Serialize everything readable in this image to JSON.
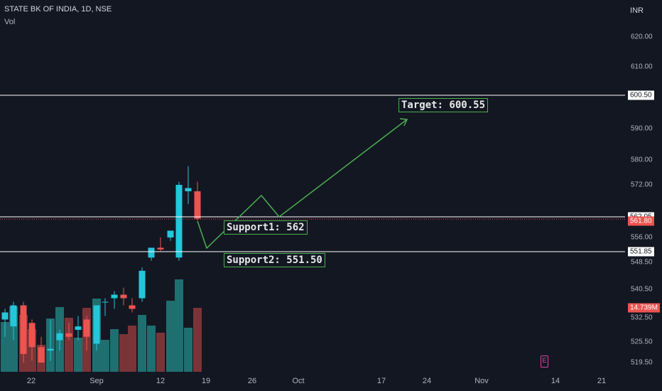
{
  "header": {
    "title": "STATE BK OF INDIA, 1D, NSE",
    "volume_label": "Vol",
    "currency": "INR"
  },
  "price_axis": {
    "ticks": [
      "620.00",
      "610.00",
      "590.00",
      "580.00",
      "572.00",
      "556.00",
      "548.50",
      "540.50",
      "532.50",
      "525.50",
      "519.50"
    ],
    "tick_values": [
      620,
      610,
      590,
      580,
      572,
      556,
      548.5,
      540.5,
      532.5,
      525.5,
      519.5
    ],
    "line_labels": [
      {
        "text": "600.50",
        "value": 600.5
      },
      {
        "text": "562.05",
        "value": 562.05
      },
      {
        "text": "551.85",
        "value": 551.85
      }
    ],
    "current_price": {
      "text": "561.80",
      "value": 561.8
    },
    "volume_badge": "14.739M"
  },
  "time_axis": {
    "ticks": [
      "22",
      "Sep",
      "12",
      "19",
      "26",
      "Oct",
      "17",
      "24",
      "Nov",
      "14",
      "21"
    ]
  },
  "annotations": {
    "target": "Target: 600.55",
    "support1": "Support1: 562",
    "support2": "Support2: 551.50"
  },
  "colors": {
    "background": "#131722",
    "bullish": "#26c6da",
    "bearish": "#ef5350",
    "drawing": "#4caf50",
    "horizontal_line": "#ffffff",
    "marker": "#e040a0"
  },
  "marker_icon": "event-marker-icon"
}
